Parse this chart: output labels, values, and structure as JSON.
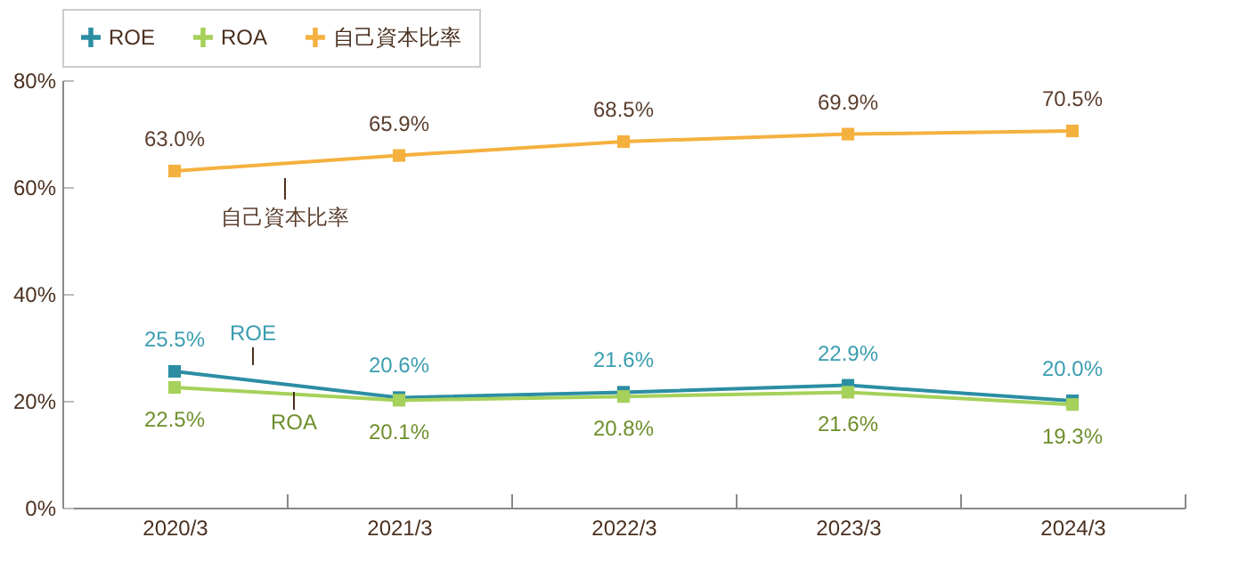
{
  "chart_data": {
    "type": "line",
    "categories": [
      "2020/3",
      "2021/3",
      "2022/3",
      "2023/3",
      "2024/3"
    ],
    "series": [
      {
        "name": "ROE",
        "color": "#2b8ea3",
        "values": [
          25.5,
          20.6,
          21.6,
          22.9,
          20.0
        ],
        "value_labels": [
          "25.5%",
          "20.6%",
          "21.6%",
          "22.9%",
          "20.0%"
        ]
      },
      {
        "name": "ROA",
        "color": "#a6d15a",
        "values": [
          22.5,
          20.1,
          20.8,
          21.6,
          19.3
        ],
        "value_labels": [
          "22.5%",
          "20.1%",
          "20.8%",
          "21.6%",
          "19.3%"
        ]
      },
      {
        "name": "自己資本比率",
        "color": "#f5b13f",
        "values": [
          63.0,
          65.9,
          68.5,
          69.9,
          70.5
        ],
        "value_labels": [
          "63.0%",
          "65.9%",
          "68.5%",
          "69.9%",
          "70.5%"
        ]
      }
    ],
    "ylim": [
      0,
      80
    ],
    "yticks": [
      {
        "value": 0,
        "label": "0%"
      },
      {
        "value": 20,
        "label": "20%"
      },
      {
        "value": 40,
        "label": "40%"
      },
      {
        "value": 60,
        "label": "60%"
      },
      {
        "value": 80,
        "label": "80%"
      }
    ],
    "annotations": [
      "ROE",
      "ROA",
      "自己資本比率"
    ],
    "legend": "top left",
    "marker": "square",
    "line_style": "solid",
    "grid": false
  }
}
